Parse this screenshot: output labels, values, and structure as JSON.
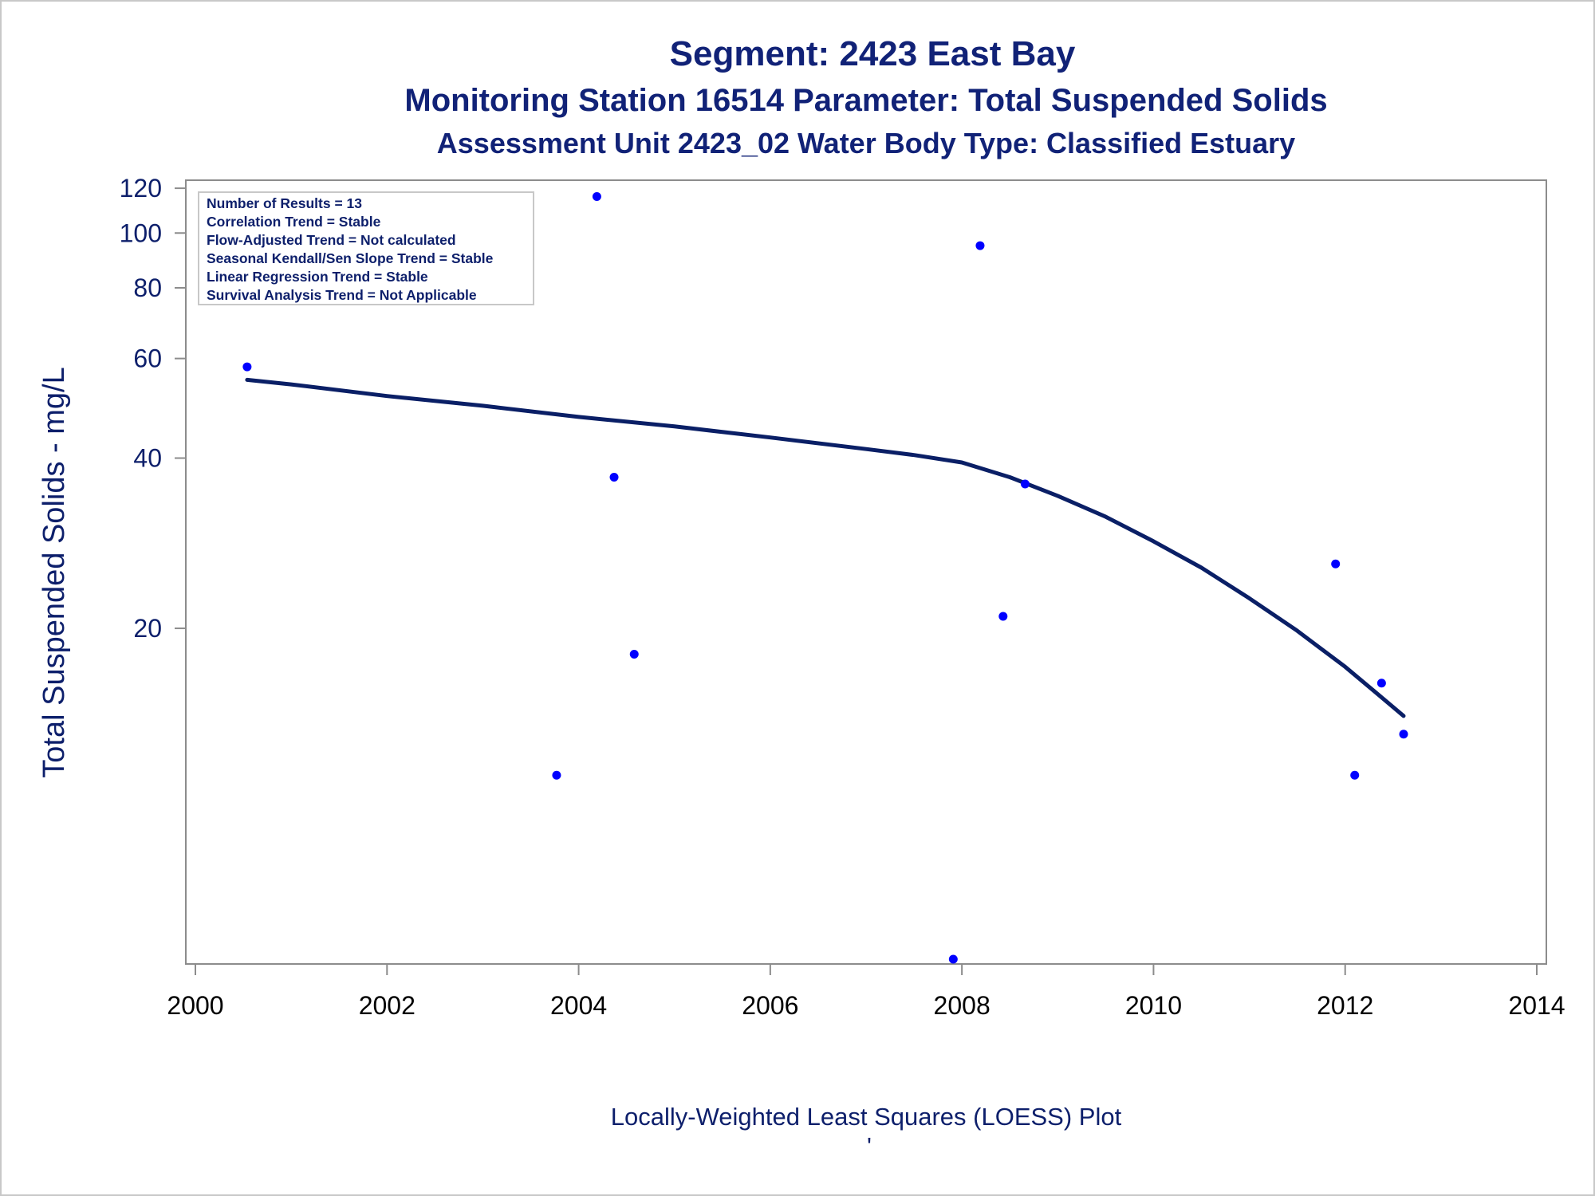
{
  "titles": {
    "line1": "Segment: 2423  East Bay",
    "line2": "Monitoring Station 16514 Parameter: Total Suspended Solids",
    "line3": "Assessment Unit 2423_02   Water Body Type: Classified Estuary"
  },
  "stats_box": [
    "Number of Results = 13",
    "Correlation Trend = Stable",
    "Flow-Adjusted Trend = Not calculated",
    "Seasonal Kendall/Sen Slope Trend = Stable",
    "Linear Regression Trend = Stable",
    "Survival Analysis Trend = Not Applicable"
  ],
  "footer": {
    "caption": "Locally-Weighted Least Squares (LOESS) Plot",
    "mark": "'"
  },
  "colors": {
    "title": "#112277",
    "points": "#0000ff",
    "loess_line": "#0a1f66",
    "frame": "#8c8c8c"
  },
  "chart_data": {
    "type": "scatter",
    "title": "Segment: 2423  East Bay",
    "xlabel": "",
    "ylabel": "Total Suspended Solids - mg/L",
    "x_scale": "linear",
    "y_scale": "log",
    "xlim": [
      2000,
      2014
    ],
    "ylim": [
      5.1,
      124
    ],
    "x_ticks": [
      2000,
      2002,
      2004,
      2006,
      2008,
      2010,
      2012,
      2014
    ],
    "y_ticks": [
      20,
      40,
      60,
      80,
      100,
      120
    ],
    "grid": false,
    "series": [
      {
        "kind": "points",
        "x": [
          2000.54,
          2003.77,
          2004.19,
          2004.37,
          2004.58,
          2007.91,
          2008.19,
          2008.43,
          2008.66,
          2011.9,
          2012.1,
          2012.38,
          2012.61
        ],
        "y": [
          58,
          11,
          116,
          37,
          18,
          5.2,
          95,
          21,
          36,
          26,
          11,
          16,
          13
        ]
      },
      {
        "kind": "loess",
        "x": [
          2000.54,
          2001,
          2002,
          2003,
          2004,
          2005,
          2006,
          2007,
          2007.5,
          2008,
          2008.5,
          2009,
          2009.5,
          2010,
          2010.5,
          2011,
          2011.5,
          2012,
          2012.3,
          2012.61
        ],
        "y": [
          55,
          54,
          51.5,
          49.5,
          47.3,
          45.5,
          43.5,
          41.5,
          40.5,
          39.3,
          37,
          34.3,
          31.5,
          28.5,
          25.6,
          22.6,
          19.8,
          17.1,
          15.5,
          14
        ]
      }
    ]
  }
}
